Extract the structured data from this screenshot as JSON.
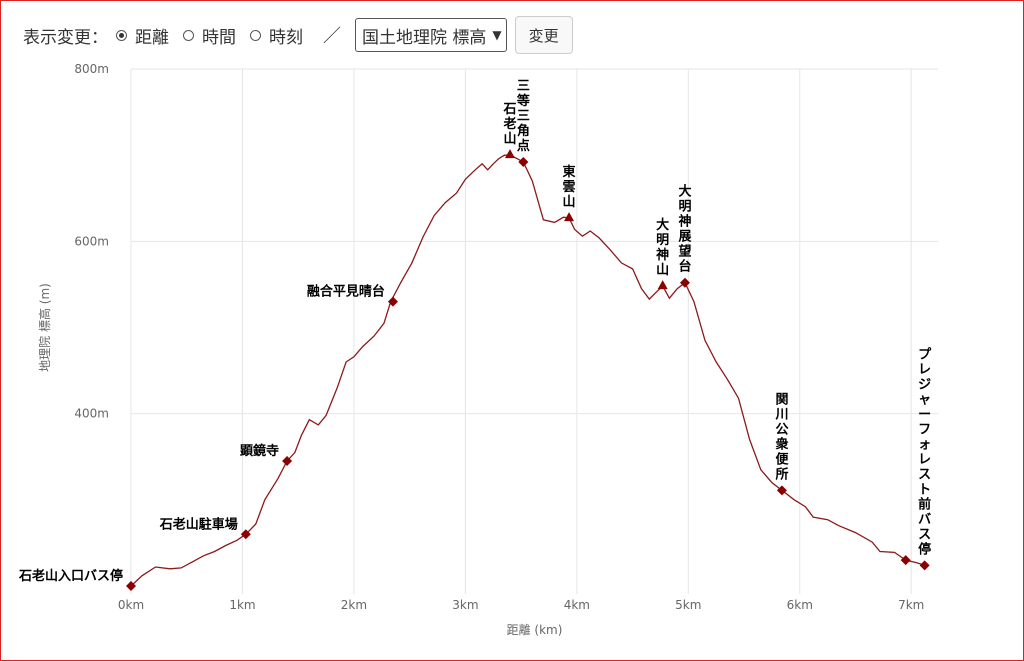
{
  "toolbar": {
    "label": "表示変更：",
    "options": [
      {
        "label": "距離",
        "checked": true
      },
      {
        "label": "時間",
        "checked": false
      },
      {
        "label": "時刻",
        "checked": false
      }
    ],
    "separator": "／",
    "select_value": "国土地理院 標高",
    "change_button": "変更"
  },
  "colors": {
    "line": "#8b1a1a",
    "marker": "#8b0000",
    "grid": "#e6e6e6"
  },
  "chart_data": {
    "type": "line",
    "xlabel": "距離 (km)",
    "ylabel": "地理院 標高 (m)",
    "x_ticks": [
      {
        "v": 0,
        "label": "0km"
      },
      {
        "v": 1,
        "label": "1km"
      },
      {
        "v": 2,
        "label": "2km"
      },
      {
        "v": 3,
        "label": "3km"
      },
      {
        "v": 4,
        "label": "4km"
      },
      {
        "v": 5,
        "label": "5km"
      },
      {
        "v": 6,
        "label": "6km"
      },
      {
        "v": 7,
        "label": "7km"
      }
    ],
    "y_ticks": [
      {
        "v": 400,
        "label": "400m"
      },
      {
        "v": 600,
        "label": "600m"
      },
      {
        "v": 800,
        "label": "800m"
      }
    ],
    "xlim": [
      0,
      7.24
    ],
    "ylim": [
      200,
      800
    ],
    "grid": true,
    "profile": [
      [
        0,
        200
      ],
      [
        0.1,
        212
      ],
      [
        0.22,
        222
      ],
      [
        0.35,
        220
      ],
      [
        0.45,
        221
      ],
      [
        0.55,
        228
      ],
      [
        0.65,
        235
      ],
      [
        0.75,
        240
      ],
      [
        0.85,
        247
      ],
      [
        0.95,
        253
      ],
      [
        1.03,
        260
      ],
      [
        1.12,
        272
      ],
      [
        1.2,
        300
      ],
      [
        1.32,
        325
      ],
      [
        1.4,
        345
      ],
      [
        1.47,
        355
      ],
      [
        1.53,
        375
      ],
      [
        1.6,
        393
      ],
      [
        1.68,
        387
      ],
      [
        1.75,
        398
      ],
      [
        1.85,
        430
      ],
      [
        1.93,
        460
      ],
      [
        2.0,
        466
      ],
      [
        2.08,
        478
      ],
      [
        2.18,
        490
      ],
      [
        2.27,
        505
      ],
      [
        2.33,
        530
      ],
      [
        2.42,
        552
      ],
      [
        2.52,
        575
      ],
      [
        2.62,
        605
      ],
      [
        2.72,
        630
      ],
      [
        2.82,
        645
      ],
      [
        2.92,
        656
      ],
      [
        3.0,
        672
      ],
      [
        3.08,
        682
      ],
      [
        3.15,
        690
      ],
      [
        3.2,
        683
      ],
      [
        3.25,
        690
      ],
      [
        3.3,
        696
      ],
      [
        3.35,
        700
      ],
      [
        3.4,
        700
      ],
      [
        3.45,
        697
      ],
      [
        3.52,
        692
      ],
      [
        3.6,
        670
      ],
      [
        3.7,
        625
      ],
      [
        3.8,
        622
      ],
      [
        3.88,
        628
      ],
      [
        3.93,
        627
      ],
      [
        3.98,
        614
      ],
      [
        4.05,
        606
      ],
      [
        4.12,
        612
      ],
      [
        4.2,
        604
      ],
      [
        4.3,
        590
      ],
      [
        4.4,
        575
      ],
      [
        4.5,
        568
      ],
      [
        4.58,
        545
      ],
      [
        4.65,
        533
      ],
      [
        4.72,
        542
      ],
      [
        4.77,
        548
      ],
      [
        4.83,
        534
      ],
      [
        4.9,
        545
      ],
      [
        4.97,
        552
      ],
      [
        5.05,
        530
      ],
      [
        5.15,
        485
      ],
      [
        5.25,
        460
      ],
      [
        5.35,
        440
      ],
      [
        5.45,
        418
      ],
      [
        5.55,
        370
      ],
      [
        5.65,
        335
      ],
      [
        5.75,
        320
      ],
      [
        5.84,
        311
      ],
      [
        5.95,
        300
      ],
      [
        6.05,
        292
      ],
      [
        6.12,
        280
      ],
      [
        6.25,
        277
      ],
      [
        6.35,
        270
      ],
      [
        6.5,
        262
      ],
      [
        6.65,
        251
      ],
      [
        6.72,
        240
      ],
      [
        6.85,
        239
      ],
      [
        6.95,
        230
      ],
      [
        7.05,
        227
      ],
      [
        7.12,
        224
      ]
    ],
    "waypoints": [
      {
        "name": "石老山入口バス停",
        "x": 0.0,
        "y": 200,
        "marker": "diamond",
        "orient": "horizontal",
        "side": "left"
      },
      {
        "name": "石老山駐車場",
        "x": 1.03,
        "y": 260,
        "marker": "diamond",
        "orient": "horizontal",
        "side": "left"
      },
      {
        "name": "顕鏡寺",
        "x": 1.4,
        "y": 345,
        "marker": "diamond",
        "orient": "horizontal",
        "side": "left"
      },
      {
        "name": "融合平見晴台",
        "x": 2.35,
        "y": 530,
        "marker": "diamond",
        "orient": "horizontal",
        "side": "left"
      },
      {
        "name": "石老山",
        "x": 3.4,
        "y": 700,
        "marker": "triangle",
        "orient": "vertical"
      },
      {
        "name": "三等三角点",
        "x": 3.52,
        "y": 692,
        "marker": "diamond",
        "orient": "vertical"
      },
      {
        "name": "東雲山",
        "x": 3.93,
        "y": 627,
        "marker": "triangle",
        "orient": "vertical"
      },
      {
        "name": "大明神山",
        "x": 4.77,
        "y": 548,
        "marker": "triangle",
        "orient": "vertical"
      },
      {
        "name": "大明神展望台",
        "x": 4.97,
        "y": 552,
        "marker": "diamond",
        "orient": "vertical"
      },
      {
        "name": "関川公衆便所",
        "x": 5.84,
        "y": 311,
        "marker": "diamond",
        "orient": "vertical"
      },
      {
        "name": "プレジャーフォレスト前バス停",
        "x": 7.12,
        "y": 224,
        "marker": "diamond",
        "orient": "vertical"
      }
    ],
    "extra_points": [
      {
        "x": 6.95,
        "y": 230,
        "marker": "diamond"
      }
    ]
  }
}
